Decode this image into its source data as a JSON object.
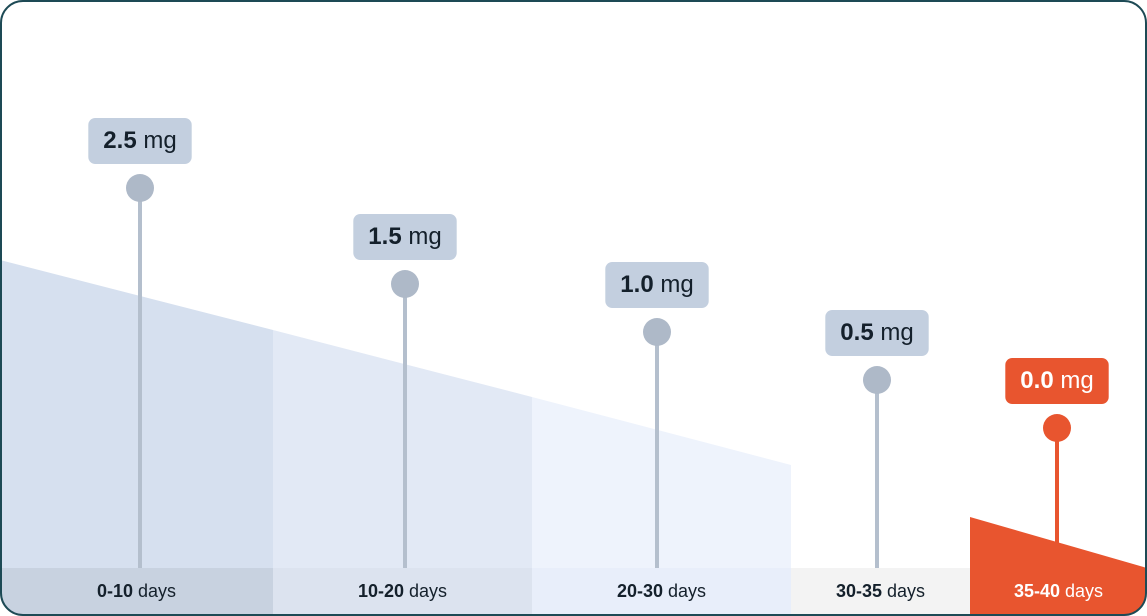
{
  "chart_data": {
    "type": "lollipop",
    "categories": [
      "0-10 days",
      "10-20 days",
      "20-30 days",
      "30-35 days",
      "35-40 days"
    ],
    "values": [
      2.5,
      1.5,
      1.0,
      0.5,
      0.0
    ],
    "value_labels": [
      "2.5 mg",
      "1.5 mg",
      "1.0 mg",
      "0.5 mg",
      "0.0 mg"
    ],
    "colors": [
      "#aeb9c8",
      "#aeb9c8",
      "#aeb9c8",
      "#aeb9c8",
      "#e8552f"
    ]
  }
}
